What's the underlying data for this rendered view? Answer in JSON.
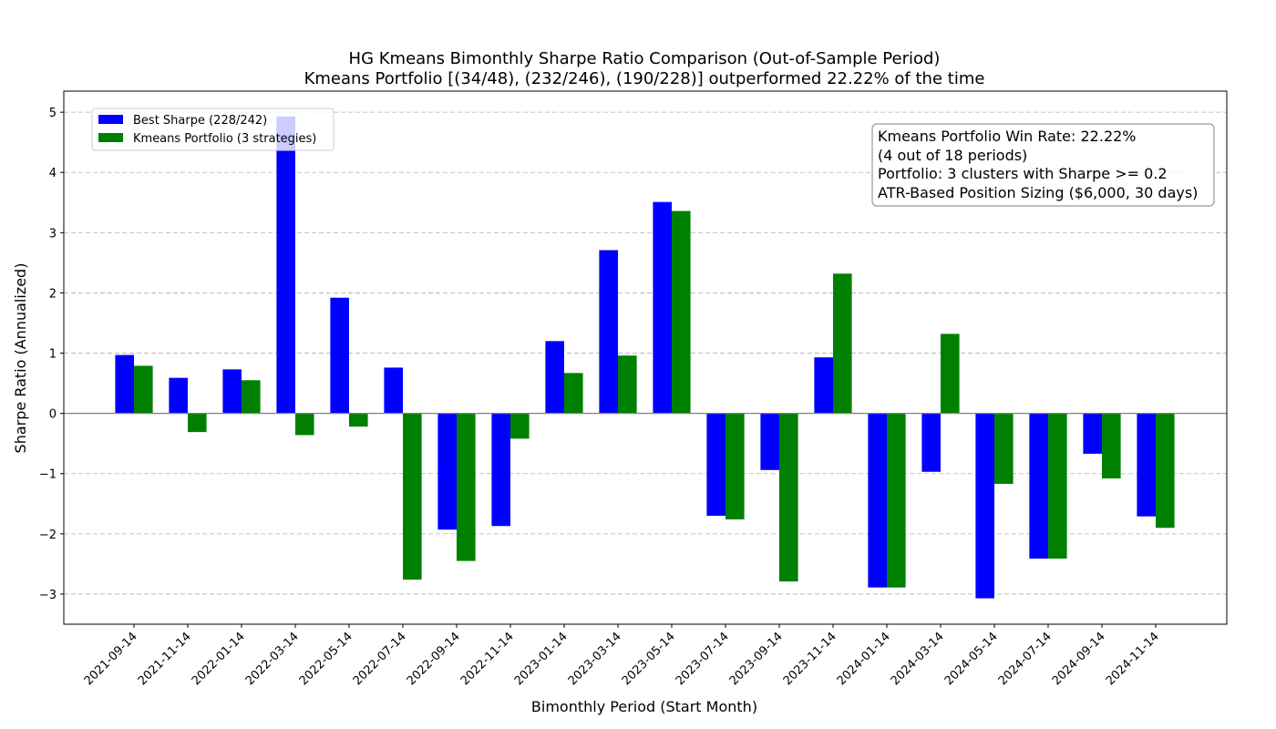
{
  "chart_data": {
    "type": "bar",
    "title": "HG Kmeans Bimonthly Sharpe Ratio Comparison (Out-of-Sample Period)",
    "subtitle": "Kmeans Portfolio [(34/48), (232/246), (190/228)] outperformed 22.22% of the time",
    "xlabel": "Bimonthly Period (Start Month)",
    "ylabel": "Sharpe Ratio (Annualized)",
    "ylim": [
      -3.5,
      5.35
    ],
    "yticks": [
      -3,
      -2,
      -1,
      0,
      1,
      2,
      3,
      4,
      5
    ],
    "ytick_labels": [
      "−3",
      "−2",
      "−1",
      "0",
      "1",
      "2",
      "3",
      "4",
      "5"
    ],
    "grid": "horizontal dashed",
    "legend_position": "upper-left",
    "categories": [
      "2021-09-14",
      "2021-11-14",
      "2022-01-14",
      "2022-03-14",
      "2022-05-14",
      "2022-07-14",
      "2022-09-14",
      "2022-11-14",
      "2023-01-14",
      "2023-03-14",
      "2023-05-14",
      "2023-07-14",
      "2023-09-14",
      "2023-11-14",
      "2024-01-14",
      "2024-03-14",
      "2024-05-14",
      "2024-07-14",
      "2024-09-14",
      "2024-11-14"
    ],
    "series": [
      {
        "name": "Best Sharpe (228/242)",
        "color": "#0000ff",
        "values": [
          0.97,
          0.59,
          0.73,
          4.93,
          1.92,
          0.76,
          -1.93,
          -1.87,
          1.2,
          2.71,
          3.51,
          -1.7,
          -0.94,
          0.93,
          -2.89,
          -0.97,
          -3.07,
          -2.41,
          -0.67,
          -1.71
        ]
      },
      {
        "name": "Kmeans Portfolio (3 strategies)",
        "color": "#008000",
        "values": [
          0.79,
          -0.31,
          0.55,
          -0.36,
          -0.22,
          -2.76,
          -2.45,
          -0.42,
          0.67,
          0.96,
          3.36,
          -1.76,
          -2.79,
          2.32,
          -2.89,
          1.32,
          -1.17,
          -2.41,
          -1.08,
          -1.9
        ]
      }
    ],
    "annotation": [
      "Kmeans Portfolio Win Rate: 22.22%",
      "(4 out of 18 periods)",
      "Portfolio: 3 clusters with Sharpe >= 0.2",
      "ATR-Based Position Sizing ($6,000, 30 days)"
    ]
  }
}
